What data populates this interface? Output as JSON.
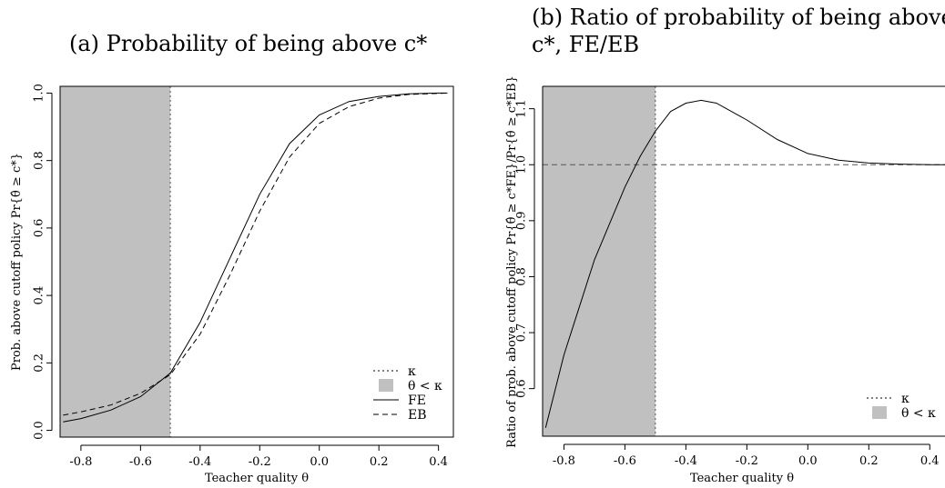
{
  "chart_data": [
    {
      "type": "line",
      "title_lines": [
        "(a) Probability of being above c*"
      ],
      "xlabel": "Teacher quality θ",
      "ylabel": "Prob. above cutoff policy Pr{θ̂ ≥ c*}",
      "xlim": [
        -0.87,
        0.45
      ],
      "ylim": [
        -0.02,
        1.02
      ],
      "xticks": [
        -0.8,
        -0.6,
        -0.4,
        -0.2,
        0.0,
        0.2,
        0.4
      ],
      "xtick_labels": [
        "-0.8",
        "-0.6",
        "-0.4",
        "-0.2",
        "0.0",
        "0.2",
        "0.4"
      ],
      "yticks": [
        0.0,
        0.2,
        0.4,
        0.6,
        0.8,
        1.0
      ],
      "ytick_labels": [
        "0.0",
        "0.2",
        "0.4",
        "0.6",
        "0.8",
        "1.0"
      ],
      "shaded_region": {
        "x_from": -0.87,
        "x_to": -0.5,
        "color": "#c0c0c0"
      },
      "vline": {
        "x": -0.5,
        "style": "dotted"
      },
      "legend": {
        "placement": "bottom-right",
        "entries": [
          {
            "label": "κ",
            "style": "dotted"
          },
          {
            "label": "θ < κ",
            "style": "fill"
          },
          {
            "label": "FE",
            "style": "solid"
          },
          {
            "label": "EB",
            "style": "dashed"
          }
        ]
      },
      "series": [
        {
          "name": "FE",
          "style": "solid",
          "x": [
            -0.86,
            -0.8,
            -0.7,
            -0.6,
            -0.5,
            -0.4,
            -0.3,
            -0.2,
            -0.1,
            0.0,
            0.1,
            0.2,
            0.3,
            0.4,
            0.43
          ],
          "y": [
            0.025,
            0.035,
            0.06,
            0.1,
            0.17,
            0.32,
            0.51,
            0.7,
            0.85,
            0.935,
            0.975,
            0.99,
            0.998,
            1.0,
            1.0
          ]
        },
        {
          "name": "EB",
          "style": "dashed",
          "x": [
            -0.86,
            -0.8,
            -0.7,
            -0.6,
            -0.5,
            -0.4,
            -0.3,
            -0.2,
            -0.1,
            0.0,
            0.1,
            0.2,
            0.3,
            0.4,
            0.43
          ],
          "y": [
            0.045,
            0.055,
            0.075,
            0.11,
            0.165,
            0.285,
            0.46,
            0.65,
            0.81,
            0.91,
            0.96,
            0.985,
            0.996,
            0.999,
            1.0
          ]
        }
      ]
    },
    {
      "type": "line",
      "title_lines": [
        "(b)  Ratio of probability of being above",
        "c*, FE/EB"
      ],
      "xlabel": "Teacher quality θ",
      "ylabel": "Ratio of prob. above cutoff policy Pr{θ̂ ≥ c*FE}/Pr{θ̂ ≥ c*EB}",
      "xlim": [
        -0.87,
        0.45
      ],
      "ylim": [
        0.515,
        1.14
      ],
      "xticks": [
        -0.8,
        -0.6,
        -0.4,
        -0.2,
        0.0,
        0.2,
        0.4
      ],
      "xtick_labels": [
        "-0.8",
        "-0.6",
        "-0.4",
        "-0.2",
        "0.0",
        "0.2",
        "0.4"
      ],
      "yticks": [
        0.6,
        0.7,
        0.8,
        0.9,
        1.0,
        1.1
      ],
      "ytick_labels": [
        "0.6",
        "0.7",
        "0.8",
        "0.9",
        "1.0",
        "1.1"
      ],
      "shaded_region": {
        "x_from": -0.87,
        "x_to": -0.5,
        "color": "#c0c0c0"
      },
      "vline": {
        "x": -0.5,
        "style": "dotted"
      },
      "hline": {
        "y": 1.0,
        "style": "dashed"
      },
      "legend": {
        "placement": "bottom-right",
        "entries": [
          {
            "label": "κ",
            "style": "dotted"
          },
          {
            "label": "θ < κ",
            "style": "fill"
          }
        ]
      },
      "series": [
        {
          "name": "",
          "style": "solid",
          "x": [
            -0.86,
            -0.8,
            -0.7,
            -0.6,
            -0.55,
            -0.5,
            -0.45,
            -0.4,
            -0.35,
            -0.3,
            -0.2,
            -0.1,
            0.0,
            0.1,
            0.2,
            0.3,
            0.4,
            0.45
          ],
          "y": [
            0.53,
            0.66,
            0.83,
            0.96,
            1.015,
            1.06,
            1.095,
            1.11,
            1.115,
            1.11,
            1.08,
            1.045,
            1.02,
            1.008,
            1.003,
            1.001,
            1.0,
            1.0
          ]
        }
      ]
    }
  ]
}
